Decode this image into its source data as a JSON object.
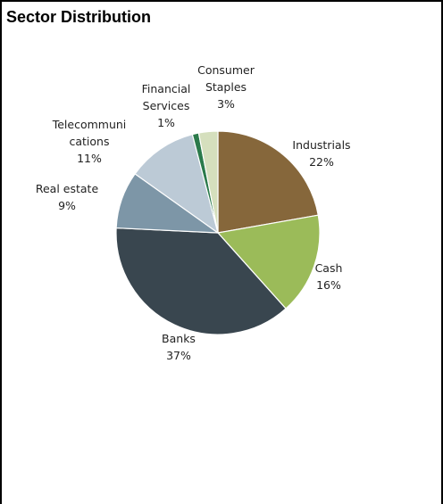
{
  "title": "Sector Distribution",
  "chart_data": {
    "type": "pie",
    "slices": [
      {
        "name": "Industrials",
        "value": 22,
        "label_lines": [
          "Industrials",
          "22%"
        ],
        "color": "#86673B"
      },
      {
        "name": "Cash",
        "value": 16,
        "label_lines": [
          "Cash",
          "16%"
        ],
        "color": "#9BBB59"
      },
      {
        "name": "Banks",
        "value": 37,
        "label_lines": [
          "Banks",
          "37%"
        ],
        "color": "#39464F"
      },
      {
        "name": "Real estate",
        "value": 9,
        "label_lines": [
          "Real estate",
          "9%"
        ],
        "color": "#7D96A7"
      },
      {
        "name": "Telecommunications",
        "value": 11,
        "label_lines": [
          "Telecommuni",
          "cations",
          "11%"
        ],
        "color": "#BCCAD6"
      },
      {
        "name": "Financial Services",
        "value": 1,
        "label_lines": [
          "Financial",
          "Services",
          "1%"
        ],
        "color": "#2B7A4B"
      },
      {
        "name": "Consumer Staples",
        "value": 3,
        "label_lines": [
          "Consumer",
          "Staples",
          "3%"
        ],
        "color": "#D5DFBD"
      }
    ]
  }
}
